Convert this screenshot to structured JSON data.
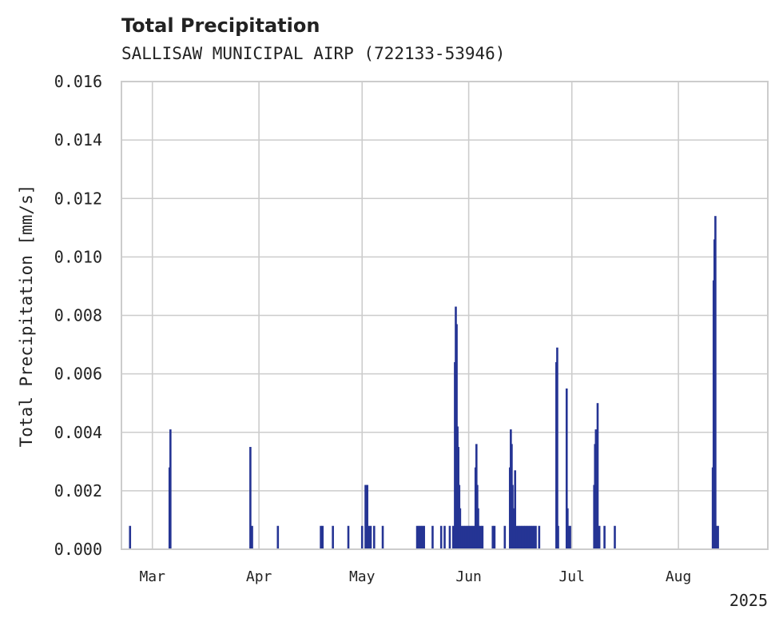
{
  "chart_data": {
    "type": "bar",
    "title": "Total Precipitation",
    "subtitle": "SALLISAW MUNICIPAL AIRP (722133-53946)",
    "ylabel": "Total Precipitation [mm/s]",
    "xlabel": "",
    "year_label": "2025",
    "ylim": [
      0,
      0.016
    ],
    "yticks": [
      "0.000",
      "0.002",
      "0.004",
      "0.006",
      "0.008",
      "0.010",
      "0.012",
      "0.014",
      "0.016"
    ],
    "xlim": [
      "2025-02-20",
      "2025-08-27"
    ],
    "xticks": [
      {
        "label": "Mar",
        "date": "2025-03-01"
      },
      {
        "label": "Apr",
        "date": "2025-04-01"
      },
      {
        "label": "May",
        "date": "2025-05-01"
      },
      {
        "label": "Jun",
        "date": "2025-06-01"
      },
      {
        "label": "Jul",
        "date": "2025-07-01"
      },
      {
        "label": "Aug",
        "date": "2025-08-01"
      }
    ],
    "grid": true,
    "bar_color": "#253494",
    "x": [
      "2025-02-22T12:00",
      "2025-03-06T00:00",
      "2025-03-06T06:00",
      "2025-03-29T12:00",
      "2025-03-30T00:00",
      "2025-04-06T12:00",
      "2025-04-19T00:00",
      "2025-04-19T12:00",
      "2025-04-22T12:00",
      "2025-04-27T00:00",
      "2025-05-01T00:00",
      "2025-05-02T00:00",
      "2025-05-02T12:00",
      "2025-05-03T00:00",
      "2025-05-03T12:00",
      "2025-05-04T12:00",
      "2025-05-07T00:00",
      "2025-05-17T00:00",
      "2025-05-17T12:00",
      "2025-05-18T00:00",
      "2025-05-18T12:00",
      "2025-05-19T00:00",
      "2025-05-21T12:00",
      "2025-05-24T00:00",
      "2025-05-25T00:00",
      "2025-05-26T12:00",
      "2025-05-27T12:00",
      "2025-05-28T00:00",
      "2025-05-28T06:00",
      "2025-05-28T12:00",
      "2025-05-28T18:00",
      "2025-05-29T00:00",
      "2025-05-29T06:00",
      "2025-05-29T12:00",
      "2025-05-30T00:00",
      "2025-05-30T12:00",
      "2025-05-31T00:00",
      "2025-05-31T12:00",
      "2025-06-01T00:00",
      "2025-06-01T12:00",
      "2025-06-02T00:00",
      "2025-06-02T12:00",
      "2025-06-03T00:00",
      "2025-06-03T06:00",
      "2025-06-03T12:00",
      "2025-06-03T18:00",
      "2025-06-04T00:00",
      "2025-06-04T12:00",
      "2025-06-05T00:00",
      "2025-06-08T00:00",
      "2025-06-08T12:00",
      "2025-06-11T12:00",
      "2025-06-13T00:00",
      "2025-06-13T06:00",
      "2025-06-13T12:00",
      "2025-06-13T18:00",
      "2025-06-14T00:00",
      "2025-06-14T12:00",
      "2025-06-15T00:00",
      "2025-06-15T12:00",
      "2025-06-16T00:00",
      "2025-06-16T12:00",
      "2025-06-17T00:00",
      "2025-06-17T12:00",
      "2025-06-18T00:00",
      "2025-06-18T12:00",
      "2025-06-19T00:00",
      "2025-06-19T12:00",
      "2025-06-20T00:00",
      "2025-06-20T12:00",
      "2025-06-21T12:00",
      "2025-06-26T12:00",
      "2025-06-26T18:00",
      "2025-06-27T00:00",
      "2025-06-29T12:00",
      "2025-06-29T18:00",
      "2025-06-30T00:00",
      "2025-06-30T12:00",
      "2025-07-07T12:00",
      "2025-07-07T18:00",
      "2025-07-08T00:00",
      "2025-07-08T12:00",
      "2025-07-09T00:00",
      "2025-07-10T12:00",
      "2025-07-13T12:00",
      "2025-08-11T00:00",
      "2025-08-11T06:00",
      "2025-08-11T12:00",
      "2025-08-11T18:00",
      "2025-08-12T00:00",
      "2025-08-12T12:00"
    ],
    "values": [
      0.0008,
      0.0028,
      0.0041,
      0.0035,
      0.0008,
      0.0008,
      0.0008,
      0.0008,
      0.0008,
      0.0008,
      0.0008,
      0.0022,
      0.0022,
      0.0008,
      0.0008,
      0.0008,
      0.0008,
      0.0008,
      0.0008,
      0.0008,
      0.0008,
      0.0008,
      0.0008,
      0.0008,
      0.0008,
      0.0008,
      0.0008,
      0.0064,
      0.0083,
      0.0077,
      0.0042,
      0.0035,
      0.0022,
      0.0014,
      0.0008,
      0.0008,
      0.0008,
      0.0008,
      0.0008,
      0.0008,
      0.0008,
      0.0008,
      0.0028,
      0.0036,
      0.0022,
      0.0014,
      0.0008,
      0.0008,
      0.0008,
      0.0008,
      0.0008,
      0.0008,
      0.0028,
      0.0041,
      0.0036,
      0.0022,
      0.0014,
      0.0027,
      0.0008,
      0.0008,
      0.0008,
      0.0008,
      0.0008,
      0.0008,
      0.0008,
      0.0008,
      0.0008,
      0.0008,
      0.0008,
      0.0008,
      0.0008,
      0.0064,
      0.0069,
      0.0008,
      0.0055,
      0.0014,
      0.0008,
      0.0008,
      0.0022,
      0.0036,
      0.0041,
      0.005,
      0.0008,
      0.0008,
      0.0008,
      0.0028,
      0.0092,
      0.0106,
      0.0114,
      0.0008,
      0.0008
    ]
  }
}
